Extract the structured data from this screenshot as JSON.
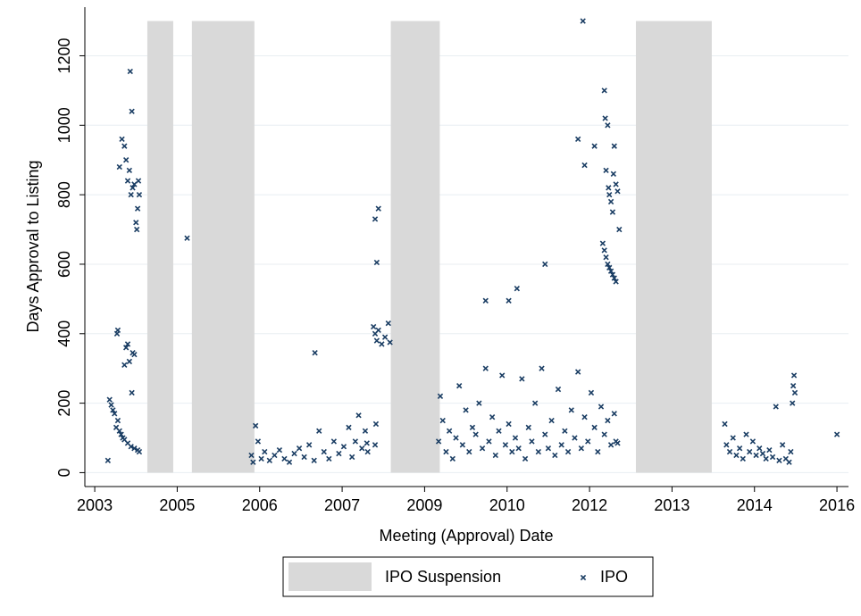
{
  "chart_data": {
    "type": "scatter",
    "xlabel": "Meeting (Approval) Date",
    "ylabel": "Days Approval to Listing",
    "xlim": [
      15940,
      20570
    ],
    "ylim": [
      -40,
      1340
    ],
    "xticks": [
      {
        "value": 16000,
        "label": "2003"
      },
      {
        "value": 16500,
        "label": "2005"
      },
      {
        "value": 17000,
        "label": "2006"
      },
      {
        "value": 17500,
        "label": "2007"
      },
      {
        "value": 18000,
        "label": "2009"
      },
      {
        "value": 18500,
        "label": "2010"
      },
      {
        "value": 19000,
        "label": "2012"
      },
      {
        "value": 19500,
        "label": "2013"
      },
      {
        "value": 20000,
        "label": "2014"
      },
      {
        "value": 20500,
        "label": "2016"
      }
    ],
    "yticks": [
      0,
      200,
      400,
      600,
      800,
      1000,
      1200
    ],
    "grid": true,
    "legend": "bottom",
    "shaded_periods": {
      "name": "IPO Suspension",
      "color": "#d9d9d9",
      "starts": [
        16319,
        16589,
        17795,
        19281
      ],
      "ends": [
        16476,
        16968,
        18092,
        19741
      ],
      "values": [
        1300,
        1300,
        1300,
        1300
      ]
    },
    "series": [
      {
        "name": "IPO",
        "color": "#1a3d63",
        "marker": "x",
        "x": [
          16080,
          16090,
          16100,
          16110,
          16120,
          16130,
          16140,
          16150,
          16160,
          16170,
          16180,
          16200,
          16220,
          16240,
          16260,
          16270,
          16135,
          16140,
          16180,
          16190,
          16200,
          16210,
          16230,
          16240,
          16225,
          16150,
          16165,
          16180,
          16190,
          16200,
          16210,
          16220,
          16230,
          16240,
          16250,
          16255,
          16260,
          16265,
          16270,
          16215,
          16225,
          16560,
          16950,
          16960,
          16975,
          16990,
          17010,
          17030,
          17060,
          17090,
          17120,
          17150,
          17180,
          17210,
          17240,
          17270,
          17300,
          17330,
          17360,
          17390,
          17420,
          17450,
          17480,
          17510,
          17540,
          17560,
          17580,
          17600,
          17620,
          17640,
          17655,
          17650,
          17335,
          17700,
          17705,
          17690,
          17700,
          17710,
          17720,
          17740,
          17760,
          17780,
          17790,
          17700,
          17710,
          17720,
          18085,
          18095,
          18110,
          18130,
          18150,
          18170,
          18190,
          18210,
          18230,
          18250,
          18270,
          18290,
          18310,
          18330,
          18350,
          18370,
          18390,
          18410,
          18430,
          18450,
          18470,
          18490,
          18510,
          18530,
          18550,
          18570,
          18590,
          18610,
          18630,
          18650,
          18670,
          18690,
          18710,
          18730,
          18750,
          18770,
          18790,
          18810,
          18830,
          18850,
          18870,
          18890,
          18910,
          18930,
          18950,
          18970,
          18990,
          19010,
          19030,
          19050,
          19070,
          19090,
          19110,
          19130,
          19150,
          19160,
          18370,
          18510,
          18560,
          18730,
          18930,
          18970,
          18960,
          19030,
          19080,
          19090,
          19100,
          19110,
          19120,
          19130,
          19140,
          19150,
          19160,
          19090,
          19095,
          19100,
          19110,
          19115,
          19120,
          19130,
          19140,
          19145,
          19150,
          19160,
          19170,
          19180,
          19170,
          19820,
          19830,
          19850,
          19870,
          19890,
          19910,
          19930,
          19950,
          19970,
          19990,
          20010,
          20030,
          20050,
          20070,
          20090,
          20110,
          20130,
          20150,
          20170,
          20190,
          20210,
          20220,
          20230,
          20235,
          20240,
          20245,
          20500
        ],
        "values": [
          35,
          210,
          195,
          180,
          170,
          130,
          150,
          120,
          110,
          100,
          95,
          85,
          75,
          70,
          65,
          60,
          400,
          410,
          310,
          360,
          370,
          320,
          345,
          340,
          230,
          880,
          960,
          940,
          900,
          840,
          870,
          800,
          820,
          830,
          720,
          700,
          760,
          840,
          800,
          1155,
          1040,
          675,
          50,
          30,
          135,
          90,
          40,
          60,
          35,
          50,
          65,
          40,
          30,
          55,
          70,
          45,
          80,
          35,
          120,
          60,
          40,
          90,
          55,
          75,
          130,
          45,
          90,
          165,
          70,
          120,
          60,
          85,
          345,
          80,
          140,
          420,
          400,
          380,
          410,
          370,
          390,
          430,
          375,
          730,
          605,
          760,
          90,
          220,
          150,
          60,
          120,
          40,
          100,
          250,
          80,
          180,
          60,
          130,
          110,
          200,
          70,
          300,
          90,
          160,
          50,
          120,
          280,
          80,
          140,
          60,
          100,
          70,
          270,
          40,
          130,
          90,
          200,
          60,
          300,
          110,
          70,
          150,
          50,
          240,
          80,
          120,
          60,
          180,
          100,
          290,
          70,
          160,
          90,
          230,
          130,
          60,
          190,
          110,
          150,
          80,
          170,
          90,
          495,
          495,
          530,
          600,
          960,
          885,
          1300,
          940,
          660,
          640,
          620,
          600,
          590,
          580,
          570,
          560,
          550,
          1100,
          1020,
          870,
          1000,
          820,
          800,
          780,
          750,
          860,
          940,
          830,
          810,
          700,
          85,
          140,
          80,
          60,
          100,
          50,
          70,
          40,
          110,
          60,
          90,
          50,
          70,
          55,
          40,
          65,
          45,
          190,
          35,
          80,
          40,
          30,
          60,
          200,
          250,
          280,
          230,
          110
        ]
      }
    ]
  }
}
